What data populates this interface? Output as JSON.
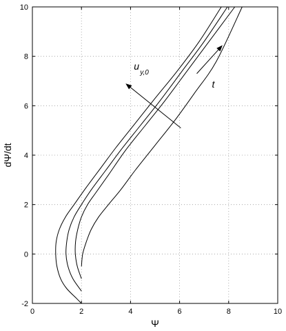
{
  "chart_data": {
    "type": "line",
    "xlabel": "Ψ",
    "ylabel": "dΨ/dt",
    "xlim": [
      0,
      10
    ],
    "ylim": [
      -2,
      10
    ],
    "xticks": [
      "0",
      "2",
      "4",
      "6",
      "8",
      "10"
    ],
    "yticks": [
      "-2",
      "0",
      "2",
      "4",
      "6",
      "8",
      "10"
    ],
    "grid": true,
    "series": [
      {
        "x": [
          2.0,
          1.8,
          1.4,
          1.15,
          1.0,
          0.95,
          0.97,
          1.1,
          1.35,
          1.7,
          2.2,
          2.8,
          3.4,
          4.2,
          5.0,
          5.9,
          6.8,
          7.7
        ],
        "y": [
          -2.0,
          -1.8,
          -1.4,
          -1.0,
          -0.5,
          0.0,
          0.5,
          1.0,
          1.5,
          2.0,
          2.7,
          3.5,
          4.3,
          5.3,
          6.3,
          7.4,
          8.6,
          10.0
        ]
      },
      {
        "x": [
          2.0,
          1.65,
          1.45,
          1.37,
          1.4,
          1.5,
          1.7,
          2.0,
          2.4,
          3.0,
          3.6,
          4.4,
          5.2,
          6.1,
          7.0,
          7.95
        ],
        "y": [
          -1.5,
          -1.0,
          -0.5,
          0.0,
          0.5,
          1.0,
          1.5,
          2.0,
          2.6,
          3.4,
          4.2,
          5.2,
          6.2,
          7.4,
          8.6,
          10.0
        ]
      },
      {
        "x": [
          2.0,
          1.83,
          1.75,
          1.76,
          1.85,
          2.0,
          2.25,
          2.6,
          3.1,
          3.8,
          4.6,
          5.4,
          6.3,
          7.2,
          8.25
        ],
        "y": [
          -1.0,
          -0.5,
          0.0,
          0.5,
          1.0,
          1.5,
          2.0,
          2.5,
          3.2,
          4.2,
          5.2,
          6.2,
          7.4,
          8.6,
          10.0
        ]
      },
      {
        "x": [
          2.0,
          2.05,
          2.2,
          2.4,
          2.7,
          3.1,
          3.6,
          4.2,
          5.0,
          5.8,
          6.6,
          7.5,
          8.55
        ],
        "y": [
          -0.5,
          0.0,
          0.5,
          1.0,
          1.5,
          2.0,
          2.6,
          3.4,
          4.4,
          5.4,
          6.5,
          7.8,
          10.0
        ]
      }
    ],
    "annotations": [
      {
        "text": "u",
        "subscript": "y,0",
        "arrow_from": [
          6.05,
          5.1
        ],
        "arrow_to": [
          3.8,
          6.9
        ]
      },
      {
        "text": "t",
        "arrow_from": [
          6.7,
          7.3
        ],
        "arrow_to": [
          7.75,
          8.45
        ]
      }
    ]
  }
}
